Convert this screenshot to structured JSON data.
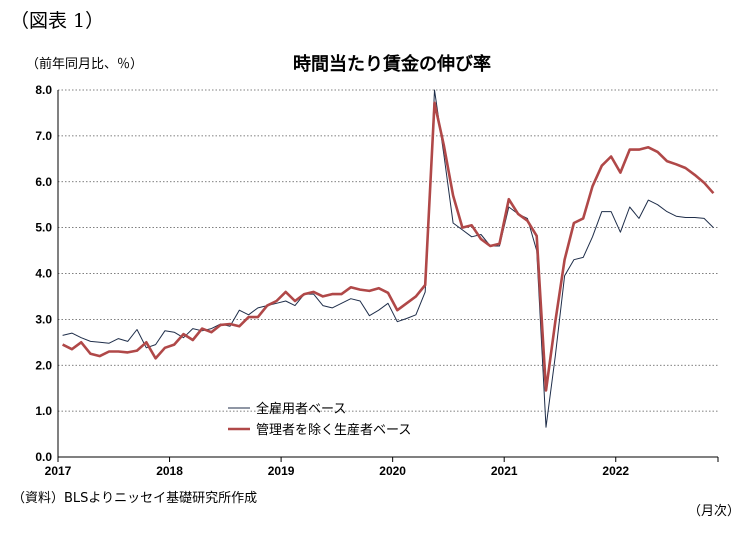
{
  "figure_label": "（図表 1）",
  "unit_label": "（前年同月比、％）",
  "source_note": "（資料）BLSよりニッセイ基礎研究所作成",
  "x_unit_label": "（月次）",
  "chart_data": {
    "type": "line",
    "title": "時間当たり賃金の伸び率",
    "ylim": [
      0,
      8
    ],
    "y_ticks": [
      "0.0",
      "1.0",
      "2.0",
      "3.0",
      "4.0",
      "5.0",
      "6.0",
      "7.0",
      "8.0"
    ],
    "x_tick_labels": [
      "2017",
      "2018",
      "2019",
      "2020",
      "2021",
      "2022"
    ],
    "grid": "horizontal dotted",
    "legend_position": "bottom-center",
    "x_start": "2017-01",
    "x_frequency": "monthly",
    "series": [
      {
        "name": "全雇用者ベース",
        "color": "#1f2e4a",
        "values": [
          2.65,
          2.7,
          2.6,
          2.52,
          2.5,
          2.48,
          2.58,
          2.52,
          2.78,
          2.38,
          2.45,
          2.75,
          2.72,
          2.6,
          2.8,
          2.75,
          2.8,
          2.9,
          2.85,
          3.2,
          3.1,
          3.25,
          3.3,
          3.35,
          3.4,
          3.3,
          3.55,
          3.55,
          3.3,
          3.25,
          3.35,
          3.45,
          3.4,
          3.08,
          3.2,
          3.35,
          2.95,
          3.02,
          3.1,
          3.6,
          8.0,
          6.6,
          5.1,
          4.95,
          4.8,
          4.85,
          4.6,
          4.6,
          5.45,
          5.3,
          5.2,
          4.5,
          0.65,
          2.2,
          3.95,
          4.3,
          4.35,
          4.8,
          5.35,
          5.35,
          4.9,
          5.45,
          5.2,
          5.6,
          5.5,
          5.35,
          5.25,
          5.22,
          5.22,
          5.2,
          5.0
        ]
      },
      {
        "name": "管理者を除く生産者ベース",
        "color": "#b04848",
        "values": [
          2.45,
          2.35,
          2.5,
          2.25,
          2.2,
          2.3,
          2.3,
          2.28,
          2.32,
          2.5,
          2.15,
          2.38,
          2.45,
          2.68,
          2.55,
          2.8,
          2.72,
          2.88,
          2.9,
          2.85,
          3.05,
          3.05,
          3.3,
          3.4,
          3.6,
          3.4,
          3.55,
          3.6,
          3.5,
          3.55,
          3.55,
          3.7,
          3.65,
          3.62,
          3.68,
          3.58,
          3.2,
          3.35,
          3.5,
          3.75,
          7.72,
          6.8,
          5.7,
          5.0,
          5.05,
          4.75,
          4.6,
          4.65,
          5.62,
          5.3,
          5.15,
          4.82,
          1.45,
          2.95,
          4.3,
          5.1,
          5.2,
          5.9,
          6.35,
          6.55,
          6.2,
          6.7,
          6.7,
          6.75,
          6.65,
          6.45,
          6.38,
          6.3,
          6.15,
          5.98,
          5.75
        ]
      }
    ]
  }
}
